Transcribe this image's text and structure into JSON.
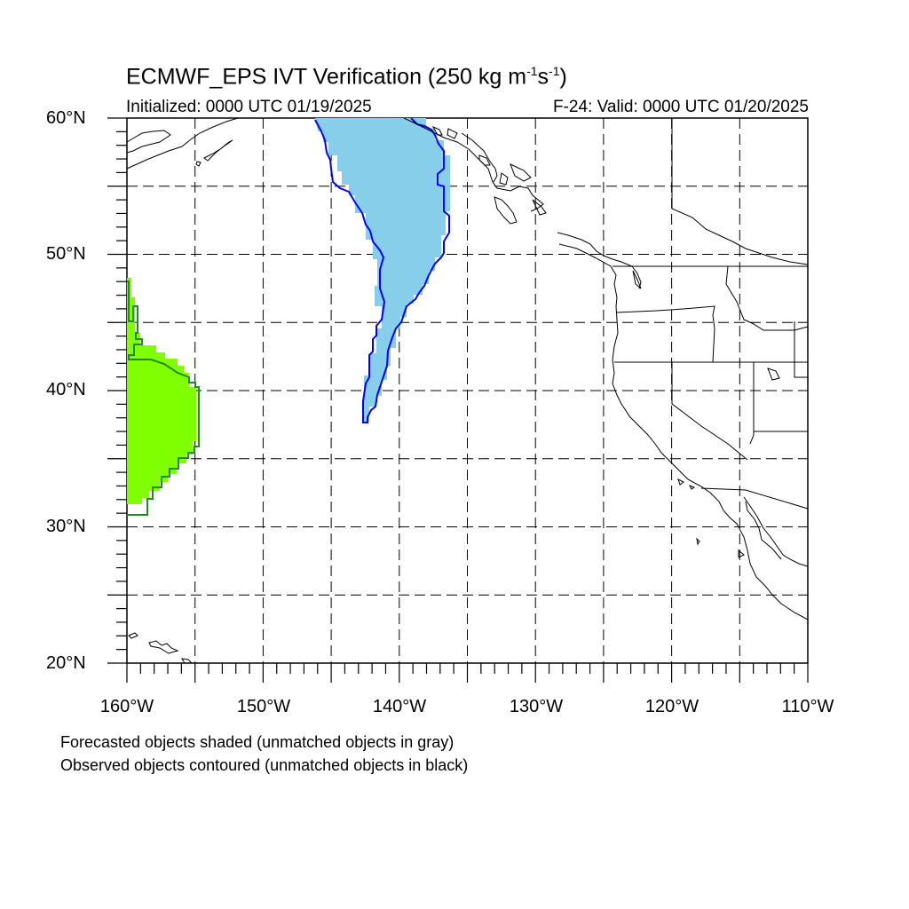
{
  "title": {
    "main": "ECMWF_EPS IVT Verification (250 kg m",
    "exp1": "-1",
    "mid": "s",
    "exp2": "-1",
    "close": ")"
  },
  "subtitle_left": "Initialized: 0000 UTC 01/19/2025",
  "subtitle_right": "F-24: Valid: 0000 UTC 01/20/2025",
  "map": {
    "lon_range": [
      -160,
      -110
    ],
    "lat_range": [
      20,
      60
    ],
    "lat_labels": [
      {
        "lat": 60,
        "text": "60°N"
      },
      {
        "lat": 50,
        "text": "50°N"
      },
      {
        "lat": 40,
        "text": "40°N"
      },
      {
        "lat": 30,
        "text": "30°N"
      },
      {
        "lat": 20,
        "text": "20°N"
      }
    ],
    "lon_labels": [
      {
        "lon": -160,
        "text": "160°W"
      },
      {
        "lon": -150,
        "text": "150°W"
      },
      {
        "lon": -140,
        "text": "140°W"
      },
      {
        "lon": -130,
        "text": "130°W"
      },
      {
        "lon": -120,
        "text": "120°W"
      },
      {
        "lon": -110,
        "text": "110°W"
      }
    ],
    "grid": "dashed, every 5 degrees",
    "objects": [
      {
        "kind": "forecast-shaded",
        "color": "#87ceeb",
        "region": "Gulf of Alaska plume"
      },
      {
        "kind": "observed-contour",
        "color": "#0000ff",
        "region": "Gulf of Alaska plume"
      },
      {
        "kind": "forecast-shaded",
        "color": "#7fff00",
        "region": "western edge near 160W"
      },
      {
        "kind": "observed-contour",
        "color": "#228b22",
        "region": "western edge near 160W"
      }
    ]
  },
  "notes": {
    "line1": "Forecasted objects shaded (unmatched objects in gray)",
    "line2": "Observed objects contoured (unmatched objects in black)"
  }
}
